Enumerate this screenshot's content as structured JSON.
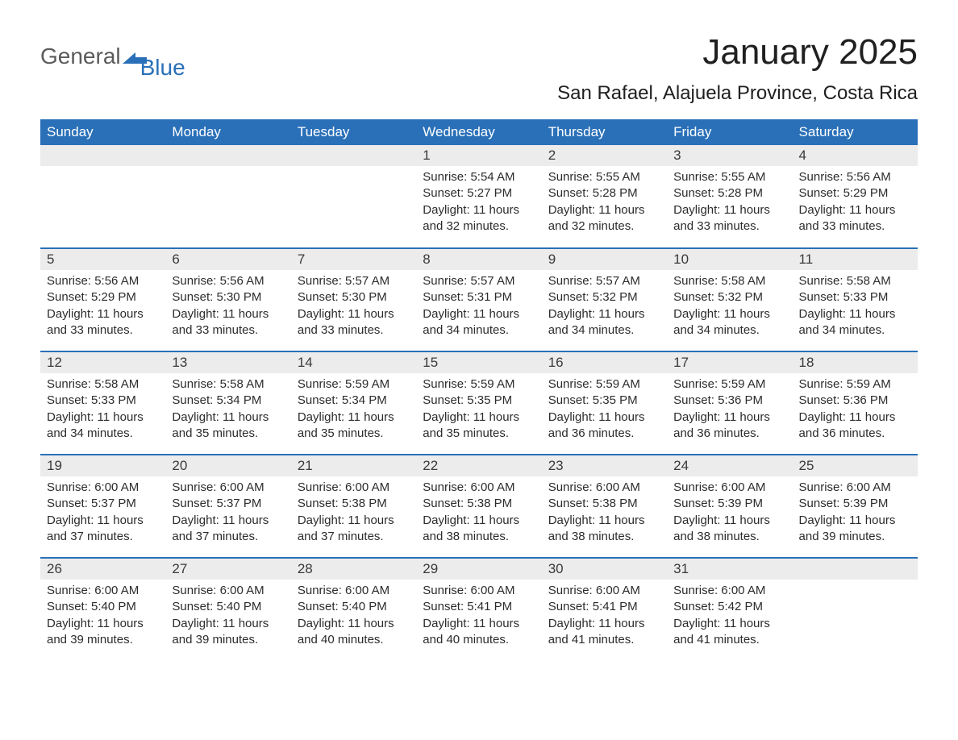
{
  "brand": {
    "text1": "General",
    "text2": "Blue"
  },
  "title": "January 2025",
  "location": "San Rafael, Alajuela Province, Costa Rica",
  "colors": {
    "accent": "#2a70b8",
    "header_bg": "#2a70b8",
    "header_text": "#ffffff",
    "daynum_bg": "#ececec",
    "text": "#333333",
    "background": "#ffffff"
  },
  "weekdays": [
    "Sunday",
    "Monday",
    "Tuesday",
    "Wednesday",
    "Thursday",
    "Friday",
    "Saturday"
  ],
  "layout": {
    "first_weekday_index": 3,
    "days_in_month": 31
  },
  "days": {
    "1": {
      "sunrise": "Sunrise: 5:54 AM",
      "sunset": "Sunset: 5:27 PM",
      "daylight": "Daylight: 11 hours and 32 minutes."
    },
    "2": {
      "sunrise": "Sunrise: 5:55 AM",
      "sunset": "Sunset: 5:28 PM",
      "daylight": "Daylight: 11 hours and 32 minutes."
    },
    "3": {
      "sunrise": "Sunrise: 5:55 AM",
      "sunset": "Sunset: 5:28 PM",
      "daylight": "Daylight: 11 hours and 33 minutes."
    },
    "4": {
      "sunrise": "Sunrise: 5:56 AM",
      "sunset": "Sunset: 5:29 PM",
      "daylight": "Daylight: 11 hours and 33 minutes."
    },
    "5": {
      "sunrise": "Sunrise: 5:56 AM",
      "sunset": "Sunset: 5:29 PM",
      "daylight": "Daylight: 11 hours and 33 minutes."
    },
    "6": {
      "sunrise": "Sunrise: 5:56 AM",
      "sunset": "Sunset: 5:30 PM",
      "daylight": "Daylight: 11 hours and 33 minutes."
    },
    "7": {
      "sunrise": "Sunrise: 5:57 AM",
      "sunset": "Sunset: 5:30 PM",
      "daylight": "Daylight: 11 hours and 33 minutes."
    },
    "8": {
      "sunrise": "Sunrise: 5:57 AM",
      "sunset": "Sunset: 5:31 PM",
      "daylight": "Daylight: 11 hours and 34 minutes."
    },
    "9": {
      "sunrise": "Sunrise: 5:57 AM",
      "sunset": "Sunset: 5:32 PM",
      "daylight": "Daylight: 11 hours and 34 minutes."
    },
    "10": {
      "sunrise": "Sunrise: 5:58 AM",
      "sunset": "Sunset: 5:32 PM",
      "daylight": "Daylight: 11 hours and 34 minutes."
    },
    "11": {
      "sunrise": "Sunrise: 5:58 AM",
      "sunset": "Sunset: 5:33 PM",
      "daylight": "Daylight: 11 hours and 34 minutes."
    },
    "12": {
      "sunrise": "Sunrise: 5:58 AM",
      "sunset": "Sunset: 5:33 PM",
      "daylight": "Daylight: 11 hours and 34 minutes."
    },
    "13": {
      "sunrise": "Sunrise: 5:58 AM",
      "sunset": "Sunset: 5:34 PM",
      "daylight": "Daylight: 11 hours and 35 minutes."
    },
    "14": {
      "sunrise": "Sunrise: 5:59 AM",
      "sunset": "Sunset: 5:34 PM",
      "daylight": "Daylight: 11 hours and 35 minutes."
    },
    "15": {
      "sunrise": "Sunrise: 5:59 AM",
      "sunset": "Sunset: 5:35 PM",
      "daylight": "Daylight: 11 hours and 35 minutes."
    },
    "16": {
      "sunrise": "Sunrise: 5:59 AM",
      "sunset": "Sunset: 5:35 PM",
      "daylight": "Daylight: 11 hours and 36 minutes."
    },
    "17": {
      "sunrise": "Sunrise: 5:59 AM",
      "sunset": "Sunset: 5:36 PM",
      "daylight": "Daylight: 11 hours and 36 minutes."
    },
    "18": {
      "sunrise": "Sunrise: 5:59 AM",
      "sunset": "Sunset: 5:36 PM",
      "daylight": "Daylight: 11 hours and 36 minutes."
    },
    "19": {
      "sunrise": "Sunrise: 6:00 AM",
      "sunset": "Sunset: 5:37 PM",
      "daylight": "Daylight: 11 hours and 37 minutes."
    },
    "20": {
      "sunrise": "Sunrise: 6:00 AM",
      "sunset": "Sunset: 5:37 PM",
      "daylight": "Daylight: 11 hours and 37 minutes."
    },
    "21": {
      "sunrise": "Sunrise: 6:00 AM",
      "sunset": "Sunset: 5:38 PM",
      "daylight": "Daylight: 11 hours and 37 minutes."
    },
    "22": {
      "sunrise": "Sunrise: 6:00 AM",
      "sunset": "Sunset: 5:38 PM",
      "daylight": "Daylight: 11 hours and 38 minutes."
    },
    "23": {
      "sunrise": "Sunrise: 6:00 AM",
      "sunset": "Sunset: 5:38 PM",
      "daylight": "Daylight: 11 hours and 38 minutes."
    },
    "24": {
      "sunrise": "Sunrise: 6:00 AM",
      "sunset": "Sunset: 5:39 PM",
      "daylight": "Daylight: 11 hours and 38 minutes."
    },
    "25": {
      "sunrise": "Sunrise: 6:00 AM",
      "sunset": "Sunset: 5:39 PM",
      "daylight": "Daylight: 11 hours and 39 minutes."
    },
    "26": {
      "sunrise": "Sunrise: 6:00 AM",
      "sunset": "Sunset: 5:40 PM",
      "daylight": "Daylight: 11 hours and 39 minutes."
    },
    "27": {
      "sunrise": "Sunrise: 6:00 AM",
      "sunset": "Sunset: 5:40 PM",
      "daylight": "Daylight: 11 hours and 39 minutes."
    },
    "28": {
      "sunrise": "Sunrise: 6:00 AM",
      "sunset": "Sunset: 5:40 PM",
      "daylight": "Daylight: 11 hours and 40 minutes."
    },
    "29": {
      "sunrise": "Sunrise: 6:00 AM",
      "sunset": "Sunset: 5:41 PM",
      "daylight": "Daylight: 11 hours and 40 minutes."
    },
    "30": {
      "sunrise": "Sunrise: 6:00 AM",
      "sunset": "Sunset: 5:41 PM",
      "daylight": "Daylight: 11 hours and 41 minutes."
    },
    "31": {
      "sunrise": "Sunrise: 6:00 AM",
      "sunset": "Sunset: 5:42 PM",
      "daylight": "Daylight: 11 hours and 41 minutes."
    }
  }
}
